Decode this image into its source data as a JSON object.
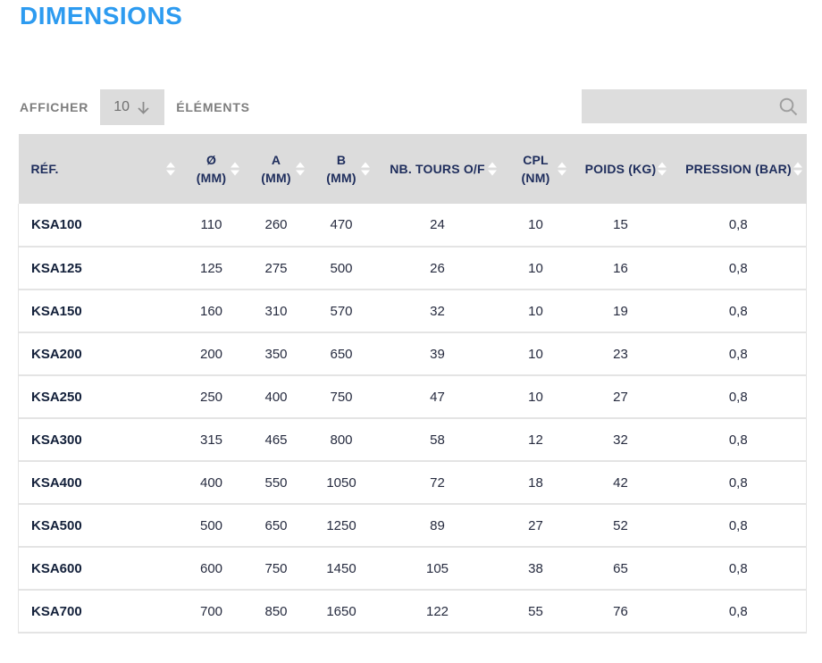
{
  "page": {
    "title": "DIMENSIONS"
  },
  "controls": {
    "show_label": "AFFICHER",
    "page_size_value": "10",
    "entries_label": "ÉLÉMENTS",
    "search_value": "",
    "search_placeholder": ""
  },
  "table": {
    "columns": [
      {
        "id": "ref",
        "lines": [
          "RÉF."
        ]
      },
      {
        "id": "o-mm",
        "lines": [
          "Ø",
          "(MM)"
        ]
      },
      {
        "id": "a-mm",
        "lines": [
          "A",
          "(MM)"
        ]
      },
      {
        "id": "b-mm",
        "lines": [
          "B",
          "(MM)"
        ]
      },
      {
        "id": "nb-tours-of",
        "lines": [
          "NB. TOURS O/F"
        ]
      },
      {
        "id": "cpl-nm",
        "lines": [
          "CPL",
          "(NM)"
        ]
      },
      {
        "id": "poids-kg",
        "lines": [
          "POIDS (KG)"
        ]
      },
      {
        "id": "pression-bar",
        "lines": [
          "PRESSION (BAR)"
        ]
      }
    ],
    "rows": [
      [
        "KSA100",
        "110",
        "260",
        "470",
        "24",
        "10",
        "15",
        "0,8"
      ],
      [
        "KSA125",
        "125",
        "275",
        "500",
        "26",
        "10",
        "16",
        "0,8"
      ],
      [
        "KSA150",
        "160",
        "310",
        "570",
        "32",
        "10",
        "19",
        "0,8"
      ],
      [
        "KSA200",
        "200",
        "350",
        "650",
        "39",
        "10",
        "23",
        "0,8"
      ],
      [
        "KSA250",
        "250",
        "400",
        "750",
        "47",
        "10",
        "27",
        "0,8"
      ],
      [
        "KSA300",
        "315",
        "465",
        "800",
        "58",
        "12",
        "32",
        "0,8"
      ],
      [
        "KSA400",
        "400",
        "550",
        "1050",
        "72",
        "18",
        "42",
        "0,8"
      ],
      [
        "KSA500",
        "500",
        "650",
        "1250",
        "89",
        "27",
        "52",
        "0,8"
      ],
      [
        "KSA600",
        "600",
        "750",
        "1450",
        "105",
        "38",
        "65",
        "0,8"
      ],
      [
        "KSA700",
        "700",
        "850",
        "1650",
        "122",
        "55",
        "76",
        "0,8"
      ]
    ]
  },
  "colors": {
    "title_accent": "#2D9BF0",
    "header_background": "#DCDCDC",
    "header_text": "#1E2D5C",
    "sort_arrow": "#FFFFFF",
    "controls_background": "#DCDCDC",
    "controls_text": "#7D7D7D",
    "body_text": "#262B3F",
    "row_border": "#E4E4E4"
  }
}
